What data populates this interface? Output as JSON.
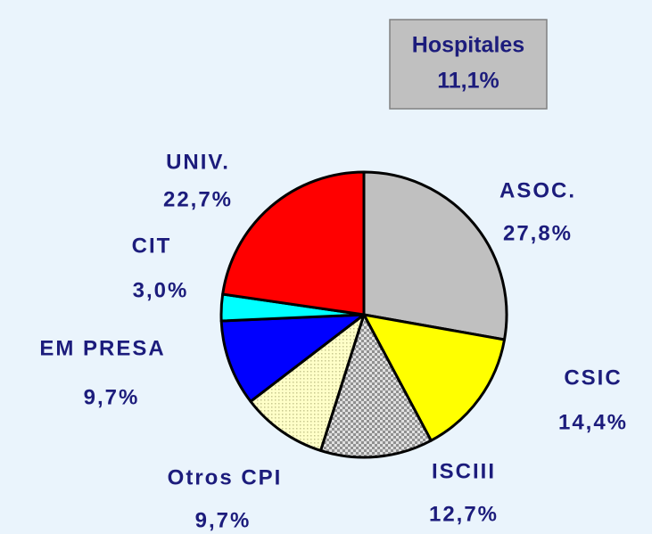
{
  "chart_data": {
    "type": "pie",
    "annotations": [
      {
        "title": "Hospitales",
        "text": "11,1%"
      }
    ],
    "categories": [
      "ASOC.",
      "CSIC",
      "ISCIII",
      "Otros CPI",
      "EM PRESA",
      "CIT",
      "UNIV."
    ],
    "values": [
      27.8,
      14.4,
      12.7,
      9.7,
      9.7,
      3.0,
      22.7
    ],
    "value_labels": [
      "27,8%",
      "14,4%",
      "12,7%",
      "9,7%",
      "9,7%",
      "3,0%",
      "22,7%"
    ],
    "colors": [
      "#c0c0c0",
      "#ffff00",
      "#c8c8c8",
      "#ffffc8",
      "#0000ff",
      "#00ffff",
      "#ff0000"
    ],
    "fill_patterns": [
      null,
      null,
      "checker",
      "dots",
      null,
      null,
      null
    ]
  }
}
